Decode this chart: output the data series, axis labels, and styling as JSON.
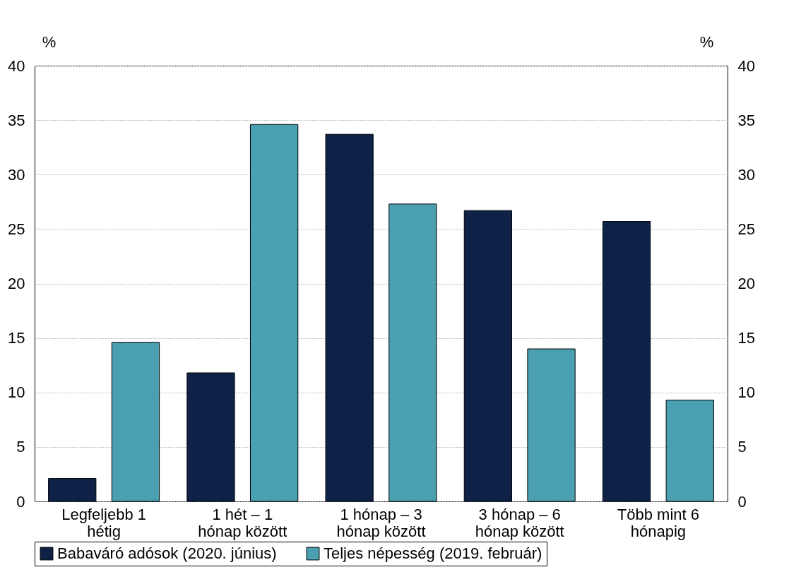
{
  "chart_data": {
    "type": "bar",
    "ylabel": "%",
    "y2label": "%",
    "categories": [
      "Legfeljebb 1 hétig",
      "1 hét – 1 hónap között",
      "1 hónap – 3 hónap között",
      "3 hónap – 6 hónap között",
      "Több mint 6 hónapig"
    ],
    "series": [
      {
        "name": "Babaváró adósok (2020. június)",
        "color": "#0e2147",
        "values": [
          2.1,
          11.8,
          33.7,
          26.7,
          25.7
        ]
      },
      {
        "name": "Teljes népesség (2019. február)",
        "color": "#4aa0b0",
        "values": [
          14.6,
          34.6,
          27.3,
          14.0,
          9.3
        ]
      }
    ],
    "ylim": [
      0,
      40
    ],
    "yticks": [
      0,
      5,
      10,
      15,
      20,
      25,
      30,
      35,
      40
    ],
    "y2lim": [
      0,
      40
    ],
    "y2ticks": [
      0,
      5,
      10,
      15,
      20,
      25,
      30,
      35,
      40
    ],
    "grid": "y",
    "legend": "bottom"
  }
}
